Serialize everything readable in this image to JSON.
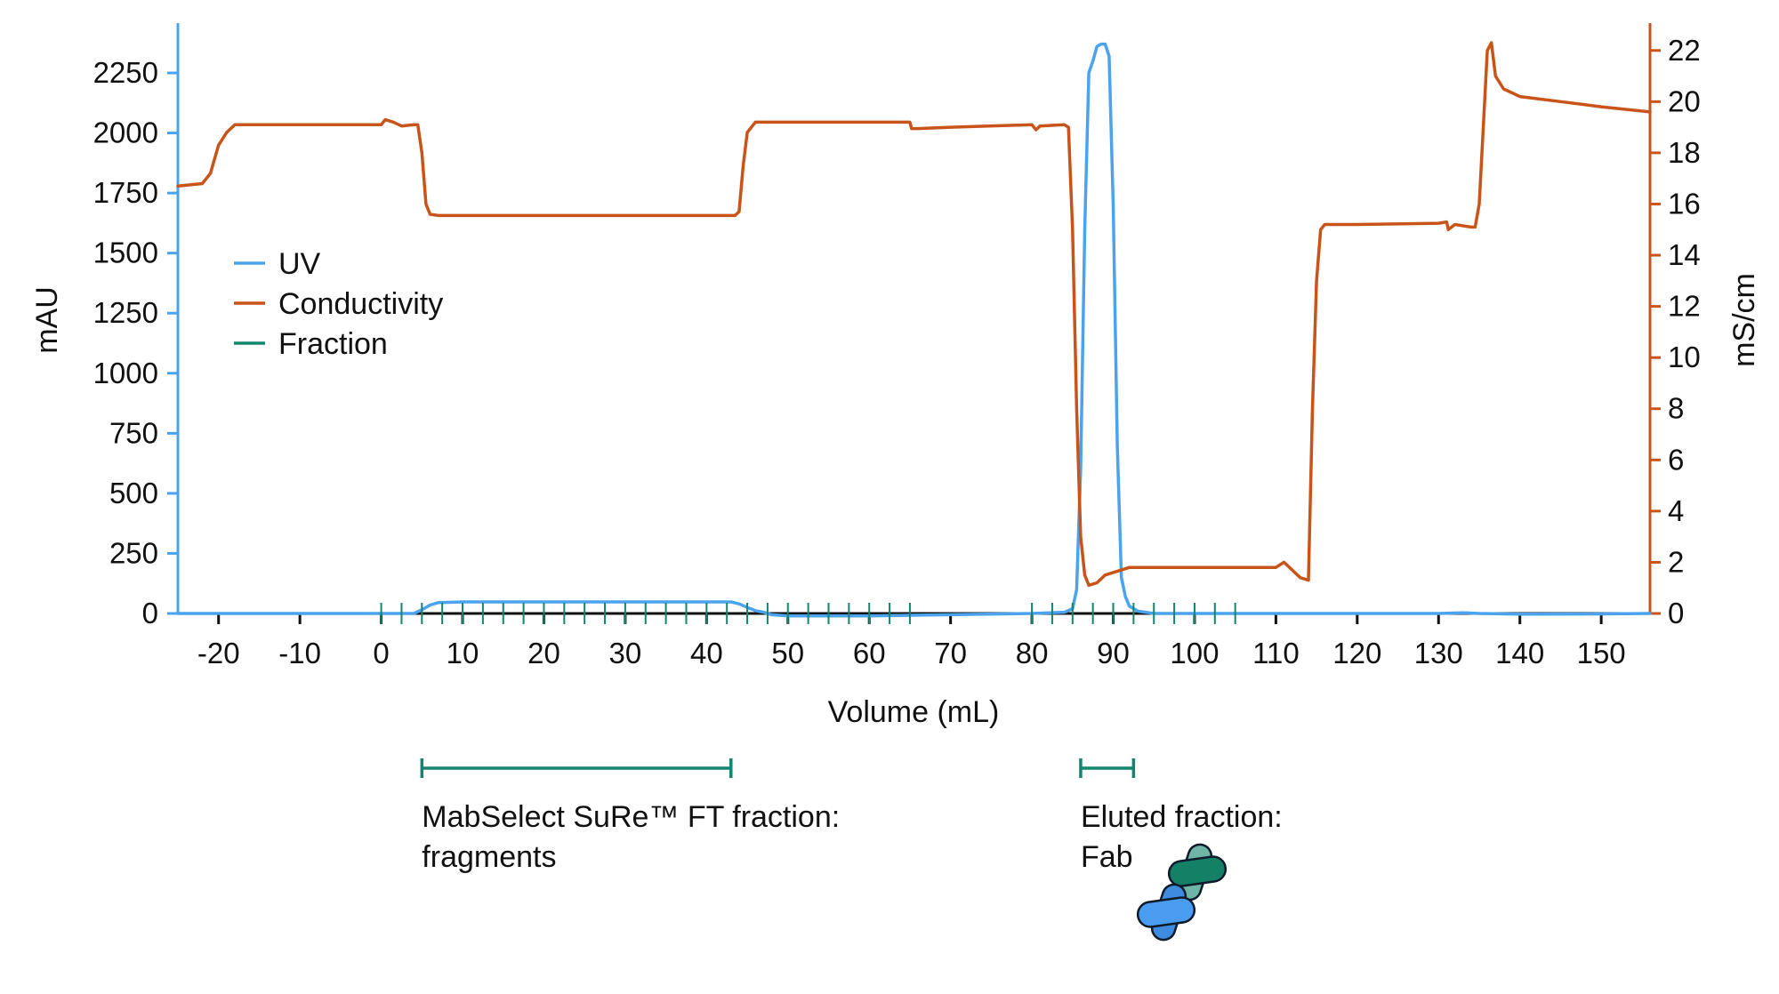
{
  "chart_data": {
    "type": "line",
    "xlabel": "Volume (mL)",
    "ylabel_left": "mAU",
    "ylabel_right": "mS/cm",
    "xlim": [
      -25,
      156
    ],
    "ylim_left": [
      0,
      2450
    ],
    "ylim_right": [
      0,
      23
    ],
    "x_ticks": [
      -20,
      -10,
      0,
      10,
      20,
      30,
      40,
      50,
      60,
      70,
      80,
      90,
      100,
      110,
      120,
      130,
      140,
      150
    ],
    "y_left_ticks": [
      0,
      250,
      500,
      750,
      1000,
      1250,
      1500,
      1750,
      2000,
      2250
    ],
    "y_right_ticks": [
      0,
      2,
      4,
      6,
      8,
      10,
      12,
      14,
      16,
      18,
      20,
      22
    ],
    "colors": {
      "uv": "#4aa3ec",
      "conductivity": "#c9541a",
      "fraction": "#12866f"
    },
    "grid": false,
    "legend_position": "upper-left",
    "series": [
      {
        "name": "UV",
        "axis": "left",
        "points": [
          [
            -25,
            0
          ],
          [
            4,
            0
          ],
          [
            5,
            15
          ],
          [
            6,
            35
          ],
          [
            7,
            45
          ],
          [
            10,
            48
          ],
          [
            20,
            48
          ],
          [
            30,
            48
          ],
          [
            40,
            48
          ],
          [
            43,
            48
          ],
          [
            44,
            40
          ],
          [
            45,
            25
          ],
          [
            46,
            12
          ],
          [
            47,
            5
          ],
          [
            48,
            -5
          ],
          [
            50,
            -10
          ],
          [
            60,
            -10
          ],
          [
            70,
            -5
          ],
          [
            80,
            0
          ],
          [
            84,
            5
          ],
          [
            85,
            20
          ],
          [
            85.5,
            100
          ],
          [
            86,
            600
          ],
          [
            86.5,
            1600
          ],
          [
            87,
            2250
          ],
          [
            87.5,
            2300
          ],
          [
            88,
            2360
          ],
          [
            88.5,
            2370
          ],
          [
            89,
            2370
          ],
          [
            89.5,
            2320
          ],
          [
            90,
            1700
          ],
          [
            90.5,
            700
          ],
          [
            91,
            150
          ],
          [
            91.5,
            70
          ],
          [
            92,
            30
          ],
          [
            93,
            10
          ],
          [
            95,
            0
          ],
          [
            110,
            0
          ],
          [
            130,
            0
          ],
          [
            133,
            3
          ],
          [
            135,
            0
          ],
          [
            140,
            -3
          ],
          [
            150,
            -2
          ],
          [
            156,
            0
          ]
        ]
      },
      {
        "name": "Conductivity",
        "axis": "right",
        "points": [
          [
            -25,
            16.7
          ],
          [
            -22,
            16.8
          ],
          [
            -21,
            17.2
          ],
          [
            -20,
            18.3
          ],
          [
            -19,
            18.8
          ],
          [
            -18,
            19.1
          ],
          [
            -10,
            19.1
          ],
          [
            0,
            19.1
          ],
          [
            0.5,
            19.3
          ],
          [
            1.5,
            19.2
          ],
          [
            2.5,
            19.05
          ],
          [
            4,
            19.1
          ],
          [
            4.5,
            19.1
          ],
          [
            5,
            18.0
          ],
          [
            5.5,
            16.0
          ],
          [
            6,
            15.6
          ],
          [
            7,
            15.55
          ],
          [
            20,
            15.55
          ],
          [
            30,
            15.55
          ],
          [
            40,
            15.55
          ],
          [
            43.5,
            15.55
          ],
          [
            44,
            15.7
          ],
          [
            44.5,
            17.5
          ],
          [
            45,
            18.8
          ],
          [
            46,
            19.2
          ],
          [
            50,
            19.2
          ],
          [
            60,
            19.2
          ],
          [
            65,
            19.2
          ],
          [
            65.2,
            18.95
          ],
          [
            66,
            18.95
          ],
          [
            70,
            19.0
          ],
          [
            80,
            19.1
          ],
          [
            80.5,
            18.9
          ],
          [
            81,
            19.05
          ],
          [
            84,
            19.1
          ],
          [
            84.5,
            19.0
          ],
          [
            85,
            15.0
          ],
          [
            85.5,
            8.0
          ],
          [
            86,
            3.0
          ],
          [
            86.5,
            1.5
          ],
          [
            87,
            1.1
          ],
          [
            88,
            1.2
          ],
          [
            89,
            1.5
          ],
          [
            90,
            1.6
          ],
          [
            91,
            1.7
          ],
          [
            92,
            1.8
          ],
          [
            100,
            1.8
          ],
          [
            110,
            1.8
          ],
          [
            111,
            2.0
          ],
          [
            112,
            1.7
          ],
          [
            113,
            1.4
          ],
          [
            114,
            1.3
          ],
          [
            114.5,
            8.0
          ],
          [
            115,
            13.0
          ],
          [
            115.5,
            15.0
          ],
          [
            116,
            15.2
          ],
          [
            120,
            15.2
          ],
          [
            130,
            15.25
          ],
          [
            131,
            15.3
          ],
          [
            131.2,
            15.0
          ],
          [
            132,
            15.2
          ],
          [
            134,
            15.1
          ],
          [
            134.5,
            15.1
          ],
          [
            135,
            16.0
          ],
          [
            136,
            22.0
          ],
          [
            136.5,
            22.3
          ],
          [
            137,
            21.0
          ],
          [
            138,
            20.5
          ],
          [
            140,
            20.2
          ],
          [
            145,
            20.0
          ],
          [
            150,
            19.8
          ],
          [
            156,
            19.6
          ]
        ]
      },
      {
        "name": "Fraction",
        "axis": "left",
        "marks": [
          0,
          2.5,
          5,
          7.5,
          10,
          12.5,
          15,
          17.5,
          20,
          22.5,
          25,
          27.5,
          30,
          32.5,
          35,
          37.5,
          40,
          42.5,
          45,
          47.5,
          50,
          52.5,
          55,
          57.5,
          60,
          62.5,
          65,
          80,
          82.5,
          85,
          87.5,
          90,
          92.5,
          95,
          97.5,
          100,
          102.5,
          105
        ]
      }
    ],
    "annotations": [
      {
        "from": 5,
        "to": 43,
        "line1": "MabSelect SuRe™ FT fraction:",
        "line2": "fragments"
      },
      {
        "from": 86,
        "to": 92.5,
        "line1": "Eluted fraction:",
        "line2": "Fab"
      }
    ]
  }
}
